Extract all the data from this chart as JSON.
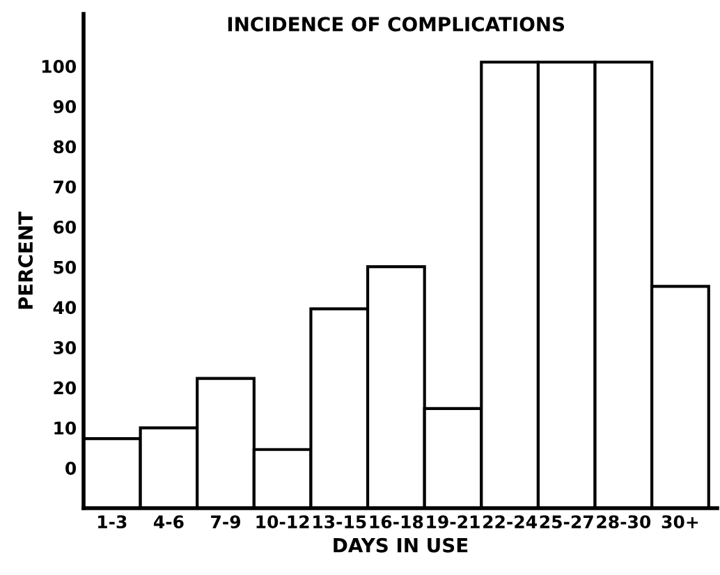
{
  "chart_data": {
    "type": "bar",
    "title": "INCIDENCE OF COMPLICATIONS",
    "xlabel": "DAYS IN USE",
    "ylabel": "PERCENT",
    "categories": [
      "1-3",
      "4-6",
      "7-9",
      "10-12",
      "13-15",
      "16-18",
      "19-21",
      "22-24",
      "25-27",
      "28-30",
      "30+"
    ],
    "base": [
      -10,
      -10,
      -10,
      -10,
      -10,
      -10,
      -10,
      -10,
      -10,
      -10,
      -10
    ],
    "values": [
      17.3,
      20,
      32.3,
      14.6,
      49.6,
      60.1,
      24.8,
      111,
      111,
      111,
      55.2
    ],
    "color": "#ffffff",
    "ylim": [
      -10,
      113
    ],
    "yticks": [
      0,
      10,
      20,
      30,
      40,
      50,
      60,
      70,
      80,
      90,
      100
    ],
    "grid": false,
    "legend": false
  }
}
